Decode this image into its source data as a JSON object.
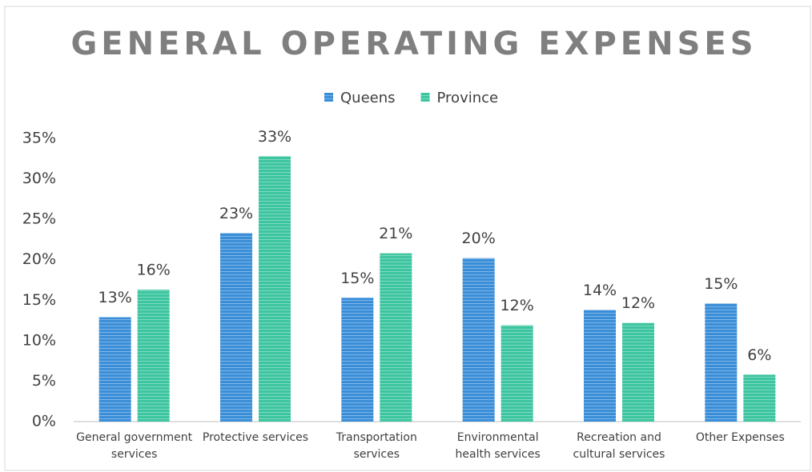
{
  "chart_data": {
    "type": "bar",
    "title": "GENERAL OPERATING EXPENSES",
    "categories": [
      "General government services",
      "Protective services",
      "Transportation services",
      "Environmental health services",
      "Recreation and cultural services",
      "Other Expenses"
    ],
    "series": [
      {
        "name": "Queens",
        "color": "#3a8ed8",
        "values": [
          12.9,
          23.3,
          15.3,
          20.2,
          13.8,
          14.6
        ],
        "value_labels": [
          "13%",
          "23%",
          "15%",
          "20%",
          "14%",
          "15%"
        ]
      },
      {
        "name": "Province",
        "color": "#3cc59f",
        "values": [
          16.3,
          32.8,
          20.8,
          11.9,
          12.2,
          5.8
        ],
        "value_labels": [
          "16%",
          "33%",
          "21%",
          "12%",
          "12%",
          "6%"
        ]
      }
    ],
    "ylim": [
      0,
      35
    ],
    "yticks": [
      {
        "value": 0,
        "label": "0%"
      },
      {
        "value": 5,
        "label": "5%"
      },
      {
        "value": 10,
        "label": "10%"
      },
      {
        "value": 15,
        "label": "15%"
      },
      {
        "value": 20,
        "label": "20%"
      },
      {
        "value": 25,
        "label": "25%"
      },
      {
        "value": 30,
        "label": "30%"
      },
      {
        "value": 35,
        "label": "35%"
      }
    ],
    "legend": "top"
  }
}
